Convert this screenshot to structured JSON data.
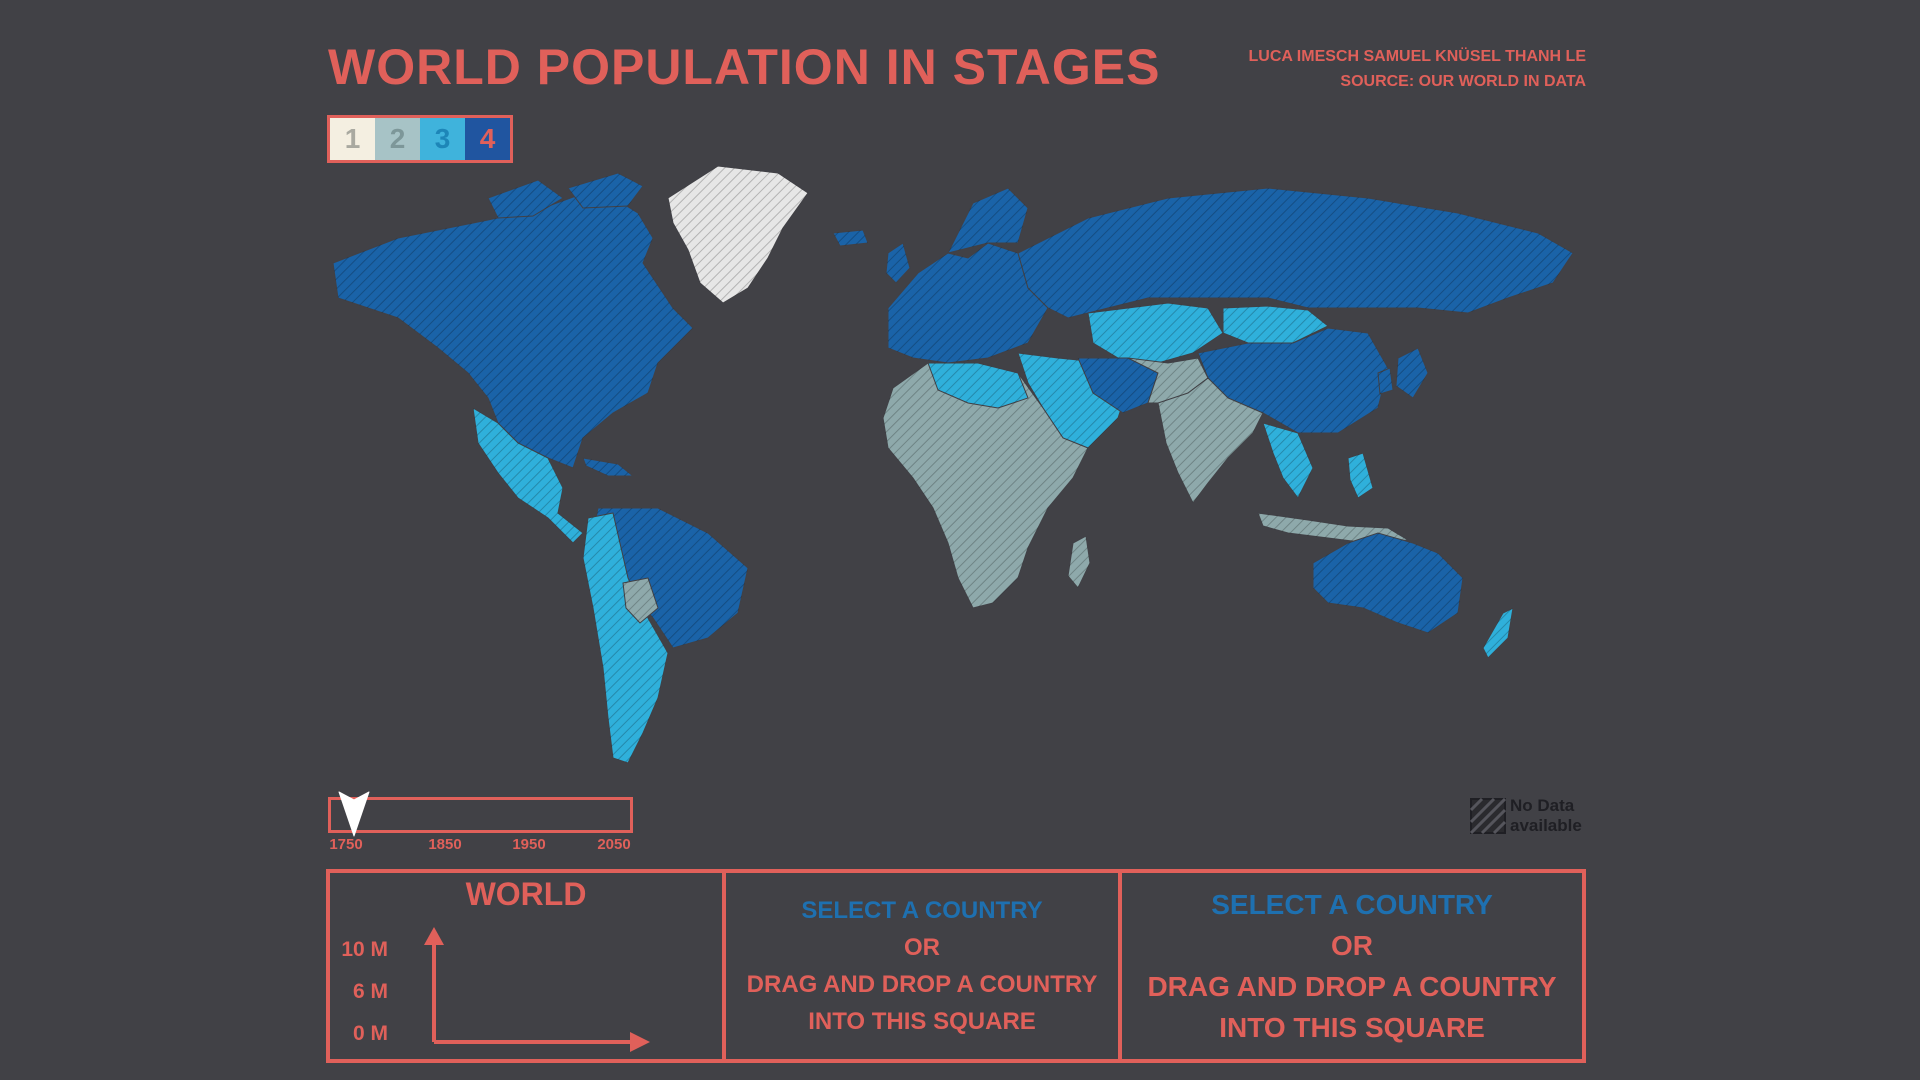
{
  "header": {
    "title": "WORLD POPULATION IN STAGES",
    "authors": "LUCA IMESCH SAMUEL KNÜSEL THANH LE",
    "source": "SOURCE: OUR WORLD IN DATA"
  },
  "stages": [
    {
      "label": "1",
      "bg": "#f4efe1",
      "fg": "#a9a9a0"
    },
    {
      "label": "2",
      "bg": "#a7c3c6",
      "fg": "#7d9799"
    },
    {
      "label": "3",
      "bg": "#3fb3dc",
      "fg": "#1d86b8"
    },
    {
      "label": "4",
      "bg": "#2055a0",
      "fg": "#e0605a"
    }
  ],
  "map": {
    "colors": {
      "stage2": "#8ea9ab",
      "stage3": "#2fb0db",
      "stage4": "#1a63a8",
      "nodata": "#e6e6e6"
    }
  },
  "timeline": {
    "ticks": [
      "1750",
      "1850",
      "1950",
      "2050"
    ],
    "current_year": 1750
  },
  "nodata_legend": {
    "line1": "No Data",
    "line2": "available"
  },
  "world_panel": {
    "title": "WORLD",
    "y_ticks": [
      "10 M",
      "6 M",
      "0 M"
    ]
  },
  "drop_panels": [
    {
      "select": "SELECT A COUNTRY",
      "or": "OR",
      "drag": "DRAG AND DROP A COUNTRY",
      "into": "INTO THIS SQUARE"
    },
    {
      "select": "SELECT A COUNTRY",
      "or": "OR",
      "drag": "DRAG AND DROP A COUNTRY",
      "into": "INTO THIS SQUARE"
    }
  ],
  "colors": {
    "accent": "#e0605a",
    "background": "#414146"
  }
}
